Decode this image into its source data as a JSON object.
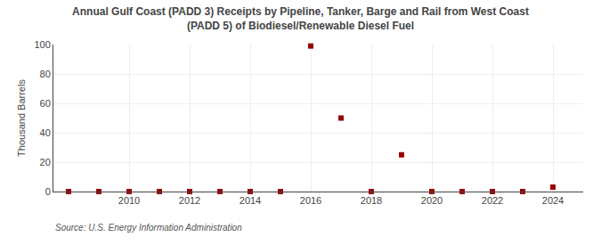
{
  "chart_data": {
    "type": "scatter",
    "title": "Annual Gulf Coast (PADD 3) Receipts by Pipeline, Tanker, Barge and Rail from West Coast\n(PADD 5) of Biodiesel/Renewable Diesel Fuel",
    "y_label": "Thousand Barrels",
    "annotations": [
      "Source: U.S. Energy Information Administration"
    ],
    "x": [
      2008,
      2009,
      2010,
      2011,
      2012,
      2013,
      2014,
      2015,
      2016,
      2017,
      2018,
      2019,
      2020,
      2021,
      2022,
      2023,
      2024
    ],
    "values": [
      0,
      0,
      0,
      0,
      0,
      0,
      0,
      0,
      99,
      50,
      0,
      25,
      0,
      0,
      0,
      0,
      3
    ],
    "color": "#990000",
    "marker": "square",
    "xlim": [
      2007.5,
      2025.0
    ],
    "ylim": [
      0,
      100
    ],
    "xticks": [
      2010,
      2012,
      2014,
      2016,
      2018,
      2020,
      2022,
      2024
    ],
    "yticks": [
      0,
      20,
      40,
      60,
      80,
      100
    ],
    "grid": true
  }
}
